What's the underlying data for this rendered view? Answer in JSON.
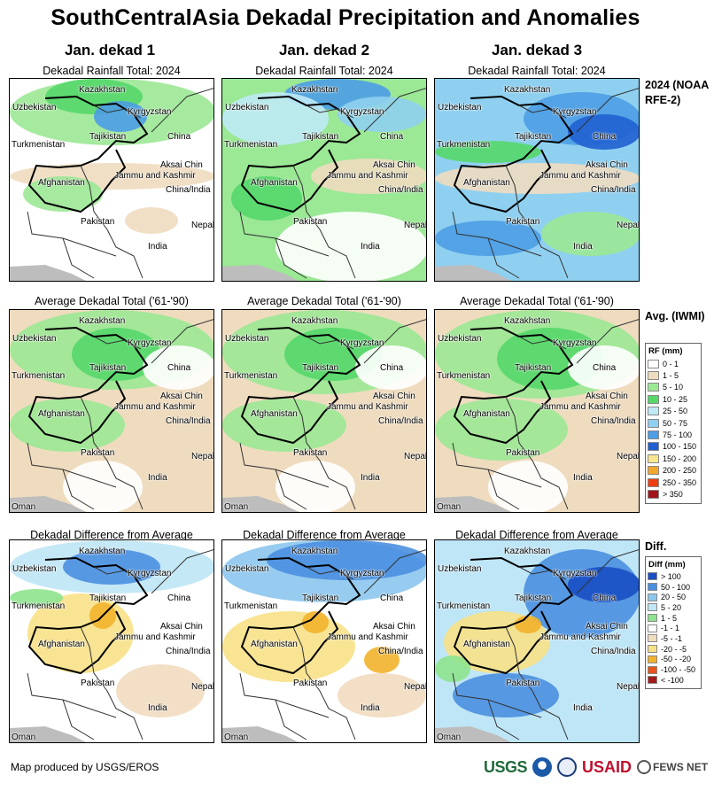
{
  "title": "SouthCentralAsia Dekadal Precipitation and Anomalies",
  "columns": [
    "Jan. dekad 1",
    "Jan. dekad 2",
    "Jan. dekad 3"
  ],
  "rows": [
    {
      "caption": "Dekadal Rainfall Total: 2024",
      "side_label": "2024 (NOAA RFE-2)"
    },
    {
      "caption": "Average Dekadal Total ('61-'90)",
      "side_label": "Avg. (IWMI)"
    },
    {
      "caption": "Dekadal Difference from Average",
      "side_label": "Diff."
    }
  ],
  "map_labels": {
    "kazakhstan": "Kazakhstan",
    "uzbekistan": "Uzbekistan",
    "kyrgyzstan": "Kyrgyzstan",
    "turkmenistan": "Turkmenistan",
    "tajikistan": "Tajikistan",
    "china": "China",
    "aksai_chin": "Aksai Chin",
    "jammu_kashmir": "Jammu and Kashmir",
    "china_india": "China/India",
    "afghanistan": "Afghanistan",
    "pakistan": "Pakistan",
    "nepal": "Nepal",
    "india": "India",
    "oman": "Oman"
  },
  "legend_rf": {
    "title": "RF (mm)",
    "items": [
      {
        "label": "0 - 1",
        "color": "#ffffff"
      },
      {
        "label": "1 - 5",
        "color": "#efdcbf"
      },
      {
        "label": "5 - 10",
        "color": "#9be895"
      },
      {
        "label": "10 - 25",
        "color": "#55d76a"
      },
      {
        "label": "25 - 50",
        "color": "#bfeaf6"
      },
      {
        "label": "50 - 75",
        "color": "#8fd0f0"
      },
      {
        "label": "75 - 100",
        "color": "#4c9de4"
      },
      {
        "label": "100 - 150",
        "color": "#2060d0"
      },
      {
        "label": "150 - 200",
        "color": "#f6e690"
      },
      {
        "label": "200 - 250",
        "color": "#f2a72e"
      },
      {
        "label": "250 - 350",
        "color": "#ef3d12"
      },
      {
        "label": "> 350",
        "color": "#a1141c"
      }
    ]
  },
  "legend_diff": {
    "title": "Diff (mm)",
    "items": [
      {
        "label": "> 100",
        "color": "#1a4fc4"
      },
      {
        "label": "50 - 100",
        "color": "#4a8fe0"
      },
      {
        "label": "20 - 50",
        "color": "#8cc7ee"
      },
      {
        "label": "5 - 20",
        "color": "#bfe6f6"
      },
      {
        "label": "1 - 5",
        "color": "#8ee38e"
      },
      {
        "label": "-1 - 1",
        "color": "#ffffff"
      },
      {
        "label": "-5 - -1",
        "color": "#f1dcc0"
      },
      {
        "label": "-20 - -5",
        "color": "#f7e187"
      },
      {
        "label": "-50 - -20",
        "color": "#f2b32c"
      },
      {
        "label": "-100 - -50",
        "color": "#e8541a"
      },
      {
        "label": "< -100",
        "color": "#a21a1a"
      }
    ]
  },
  "footer": "Map produced by USGS/EROS",
  "logos": {
    "usgs": "USGS",
    "usaid": "USAID",
    "fews": "FEWS NET"
  }
}
